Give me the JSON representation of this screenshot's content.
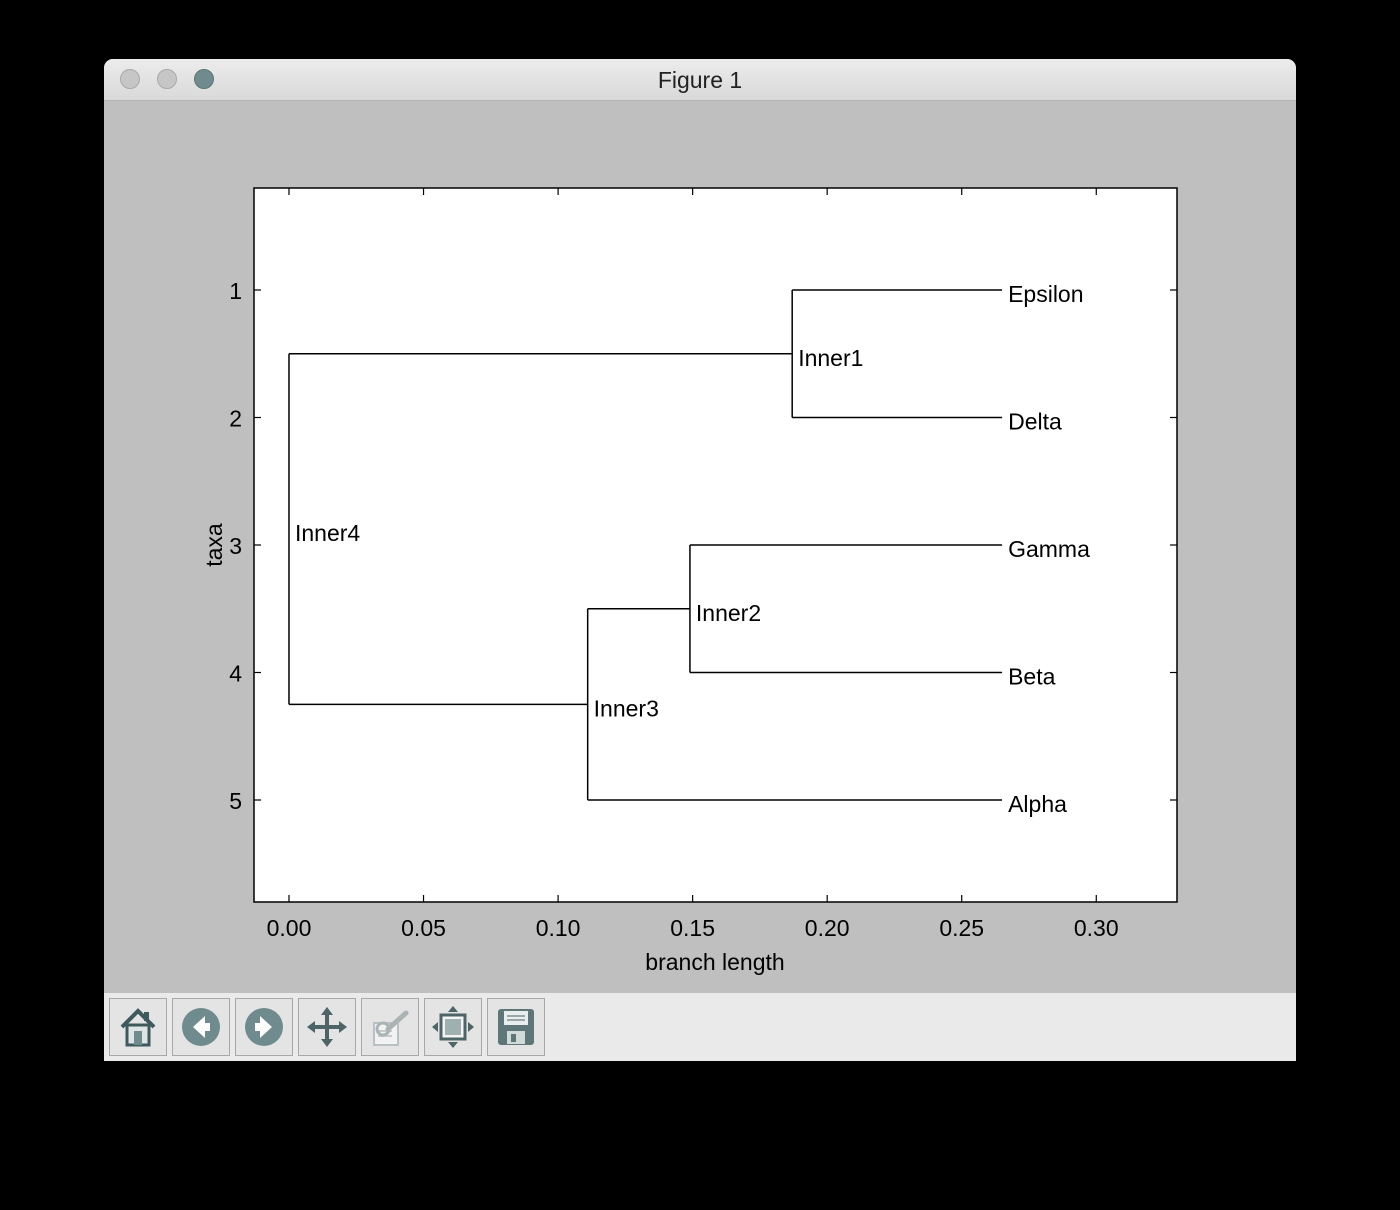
{
  "window": {
    "title": "Figure 1"
  },
  "toolbar": {
    "buttons": [
      {
        "name": "home-button",
        "icon": "home-icon"
      },
      {
        "name": "back-button",
        "icon": "back-arrow-icon"
      },
      {
        "name": "forward-button",
        "icon": "forward-arrow-icon"
      },
      {
        "name": "pan-button",
        "icon": "move-icon"
      },
      {
        "name": "zoom-button",
        "icon": "zoom-rect-icon"
      },
      {
        "name": "subplots-button",
        "icon": "subplots-icon"
      },
      {
        "name": "save-button",
        "icon": "floppy-disk-icon"
      }
    ]
  },
  "chart_data": {
    "type": "dendrogram",
    "xlabel": "branch length",
    "ylabel": "taxa",
    "xlim": [
      -0.013,
      0.33
    ],
    "ylim": [
      5.8,
      0.2
    ],
    "xticks": [
      0.0,
      0.05,
      0.1,
      0.15,
      0.2,
      0.25,
      0.3
    ],
    "xtick_labels": [
      "0.00",
      "0.05",
      "0.10",
      "0.15",
      "0.20",
      "0.25",
      "0.30"
    ],
    "yticks": [
      1,
      2,
      3,
      4,
      5
    ],
    "ytick_labels": [
      "1",
      "2",
      "3",
      "4",
      "5"
    ],
    "leaves": [
      {
        "name": "Epsilon",
        "x": 0.265,
        "y": 1
      },
      {
        "name": "Delta",
        "x": 0.265,
        "y": 2
      },
      {
        "name": "Gamma",
        "x": 0.265,
        "y": 3
      },
      {
        "name": "Beta",
        "x": 0.265,
        "y": 4
      },
      {
        "name": "Alpha",
        "x": 0.265,
        "y": 5
      }
    ],
    "inner_nodes": [
      {
        "name": "Inner1",
        "x": 0.187,
        "y": 1.5,
        "children": [
          "Epsilon",
          "Delta"
        ]
      },
      {
        "name": "Inner2",
        "x": 0.149,
        "y": 3.5,
        "children": [
          "Gamma",
          "Beta"
        ]
      },
      {
        "name": "Inner3",
        "x": 0.111,
        "y": 4.25,
        "children": [
          "Inner2",
          "Alpha"
        ]
      },
      {
        "name": "Inner4",
        "x": 0.0,
        "y": 2.875,
        "children": [
          "Inner1",
          "Inner3"
        ]
      }
    ]
  }
}
